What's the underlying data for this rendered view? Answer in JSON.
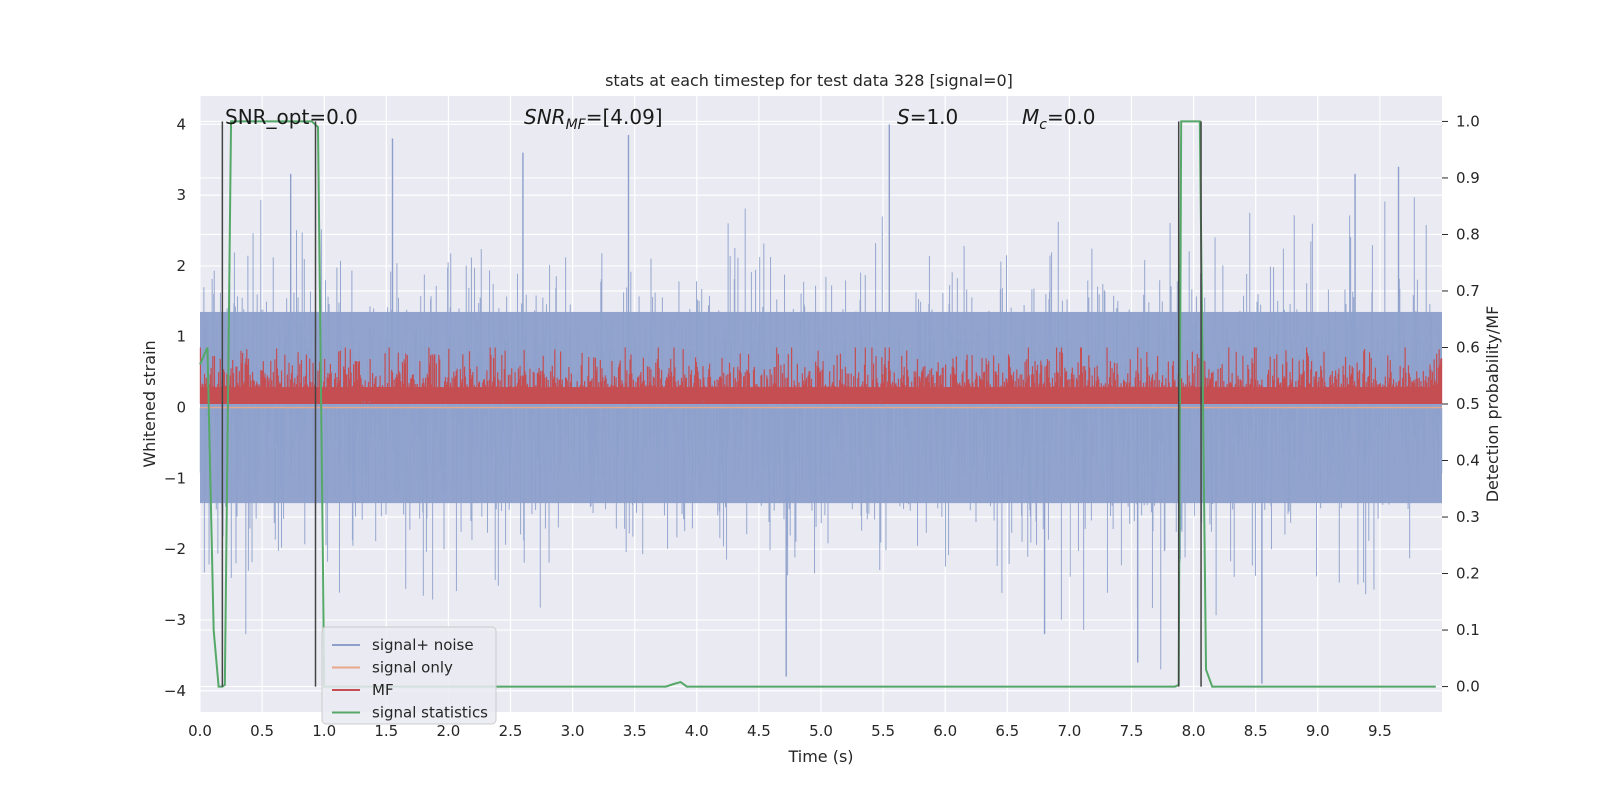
{
  "chart_data": {
    "type": "line",
    "title": "stats at each timestep for test data 328 [signal=0]",
    "xlabel": "Time (s)",
    "ylabel": "Whitened strain",
    "y2label": "Detection probability/MF",
    "xlim": [
      0.0,
      10.0
    ],
    "ylim": [
      -4.3,
      4.4
    ],
    "y2lim": [
      -0.045,
      1.045
    ],
    "xticks": [
      0.0,
      0.5,
      1.0,
      1.5,
      2.0,
      2.5,
      3.0,
      3.5,
      4.0,
      4.5,
      5.0,
      5.5,
      6.0,
      6.5,
      7.0,
      7.5,
      8.0,
      8.5,
      9.0,
      9.5
    ],
    "xtick_labels": [
      "0.0",
      "0.5",
      "1.0",
      "1.5",
      "2.0",
      "2.5",
      "3.0",
      "3.5",
      "4.0",
      "4.5",
      "5.0",
      "5.5",
      "6.0",
      "6.5",
      "7.0",
      "7.5",
      "8.0",
      "8.5",
      "9.0",
      "9.5"
    ],
    "yticks": [
      -4,
      -3,
      -2,
      -1,
      0,
      1,
      2,
      3,
      4
    ],
    "ytick_labels": [
      "−4",
      "−3",
      "−2",
      "−1",
      "0",
      "1",
      "2",
      "3",
      "4"
    ],
    "y2ticks": [
      0.0,
      0.1,
      0.2,
      0.3,
      0.4,
      0.5,
      0.6,
      0.7,
      0.8,
      0.9,
      1.0
    ],
    "y2tick_labels": [
      "0.0",
      "0.1",
      "0.2",
      "0.3",
      "0.4",
      "0.5",
      "0.6",
      "0.7",
      "0.8",
      "0.9",
      "1.0"
    ],
    "grid": true,
    "legend_position": "lower-left",
    "annotations": [
      {
        "name": "snr-opt",
        "text": "SNR_opt=0.0",
        "x": 0.2
      },
      {
        "name": "snr-mf",
        "text": "SNR_MF=[4.09]",
        "x": 2.6
      },
      {
        "name": "s-value",
        "text": "S=1.0",
        "x": 5.6
      },
      {
        "name": "mc-value",
        "text": "M_c=0.0",
        "x": 6.6
      }
    ],
    "series": [
      {
        "name": "signal+ noise",
        "axis": "left",
        "color": "#8da0cb",
        "description_visible": false,
        "noise_amplitude_sigma": 1.0,
        "extremes": {
          "max": 4.0,
          "min": -3.9
        }
      },
      {
        "name": "signal only",
        "axis": "left",
        "color": "#e8a58a",
        "x": [
          0.0,
          10.0
        ],
        "y": [
          0.0,
          0.0
        ]
      },
      {
        "name": "MF",
        "axis": "right",
        "color": "#c44e52",
        "baseline": 0.5,
        "band": [
          0.5,
          0.6
        ]
      },
      {
        "name": "signal statistics",
        "axis": "right",
        "color": "#55a868",
        "x": [
          0.0,
          0.06,
          0.11,
          0.15,
          0.18,
          0.2,
          0.25,
          0.9,
          0.95,
          0.99,
          1.0,
          3.75,
          3.82,
          3.87,
          3.92,
          7.85,
          7.88,
          7.9,
          8.0,
          8.05,
          8.1,
          8.15,
          8.2,
          9.95
        ],
        "y": [
          0.57,
          0.6,
          0.1,
          0.0,
          0.0,
          0.003,
          1.0,
          1.0,
          0.99,
          0.22,
          0.0,
          0.0,
          0.005,
          0.008,
          0.0,
          0.0,
          0.003,
          1.0,
          1.0,
          1.0,
          0.03,
          0.0,
          0.0,
          0.0
        ]
      }
    ],
    "vertical_markers": [
      0.18,
      0.93,
      7.88,
      8.06
    ]
  },
  "legend": {
    "items": [
      {
        "label": "signal+ noise",
        "color": "#8da0cb"
      },
      {
        "label": "signal only",
        "color": "#e8a58a"
      },
      {
        "label": "MF",
        "color": "#c44e52"
      },
      {
        "label": "signal statistics",
        "color": "#55a868"
      }
    ]
  }
}
